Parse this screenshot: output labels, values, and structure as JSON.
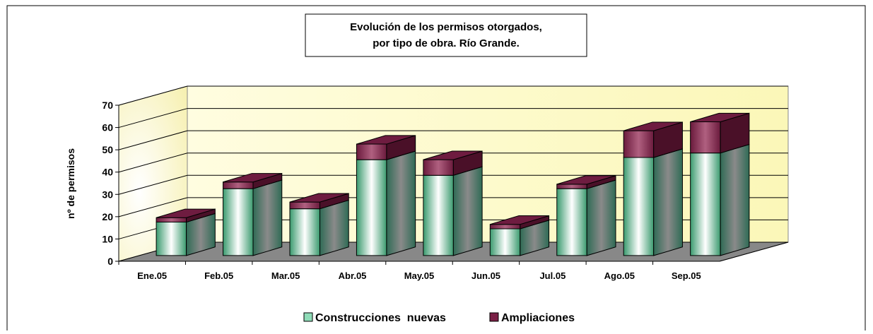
{
  "chart_data": {
    "type": "bar3d_stacked",
    "title": [
      "Evolución de los permisos otorgados,",
      "por tipo de obra. Río Grande."
    ],
    "y_label": "nº de permisos",
    "categories": [
      "Ene.05",
      "Feb.05",
      "Mar.05",
      "Abr.05",
      "May.05",
      "Jun.05",
      "Jul.05",
      "Ago.05",
      "Sep.05"
    ],
    "series": [
      {
        "name": "Construcciones  nuevas",
        "color": "#3a9a6e",
        "values": [
          15,
          30,
          21,
          43,
          36,
          12,
          30,
          44,
          46
        ]
      },
      {
        "name": "Ampliaciones",
        "color": "#7a1f45",
        "values": [
          2,
          3,
          3,
          7,
          7,
          2,
          2,
          12,
          14
        ]
      }
    ],
    "ylim": [
      0,
      70
    ],
    "yticks": [
      0,
      10,
      20,
      30,
      40,
      50,
      60,
      70
    ],
    "grid": true,
    "legend": "bottom"
  }
}
